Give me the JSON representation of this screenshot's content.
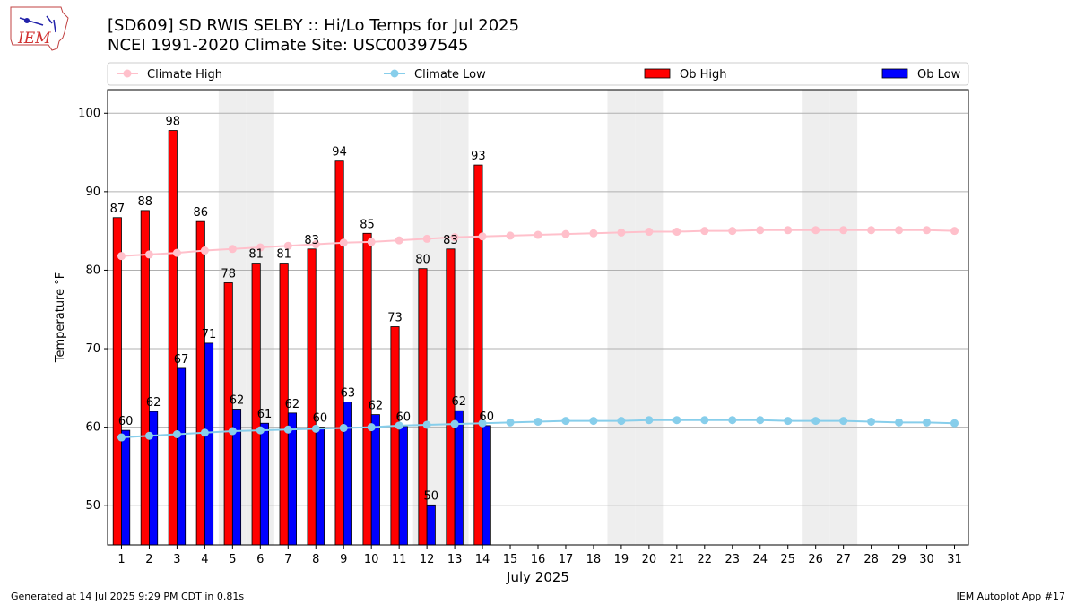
{
  "header": {
    "title_line1": "[SD609] SD RWIS SELBY :: Hi/Lo Temps for Jul 2025",
    "title_line2": "NCEI 1991-2020 Climate Site: USC00397545"
  },
  "logo": {
    "text": "IEM"
  },
  "footer": {
    "left": "Generated at 14 Jul 2025 9:29 PM CDT in 0.81s",
    "right": "IEM Autoplot App #17"
  },
  "colors": {
    "climate_high": "#ffc0cb",
    "climate_low": "#87ceeb",
    "ob_high": "#ff0000",
    "ob_low": "#0000ff",
    "weekend_shade": "#eeeeee",
    "grid": "#b0b0b0"
  },
  "chart_data": {
    "type": "bar",
    "xlabel": "July 2025",
    "ylabel": "Temperature °F",
    "ylim": [
      45,
      103
    ],
    "yticks": [
      50,
      60,
      70,
      80,
      90,
      100
    ],
    "grid": "horizontal",
    "legend_placement": "top",
    "categories": [
      "1",
      "2",
      "3",
      "4",
      "5",
      "6",
      "7",
      "8",
      "9",
      "10",
      "11",
      "12",
      "13",
      "14",
      "15",
      "16",
      "17",
      "18",
      "19",
      "20",
      "21",
      "22",
      "23",
      "24",
      "25",
      "26",
      "27",
      "28",
      "29",
      "30",
      "31"
    ],
    "weekend_days": [
      5,
      6,
      12,
      13,
      19,
      20,
      26,
      27
    ],
    "series": [
      {
        "name": "Climate High",
        "kind": "line",
        "values": [
          81.8,
          82.0,
          82.2,
          82.5,
          82.7,
          82.9,
          83.1,
          83.3,
          83.5,
          83.6,
          83.8,
          84.0,
          84.2,
          84.3,
          84.4,
          84.5,
          84.6,
          84.7,
          84.8,
          84.9,
          84.9,
          85.0,
          85.0,
          85.1,
          85.1,
          85.1,
          85.1,
          85.1,
          85.1,
          85.1,
          85.0
        ]
      },
      {
        "name": "Climate Low",
        "kind": "line",
        "values": [
          58.7,
          58.9,
          59.1,
          59.3,
          59.5,
          59.6,
          59.7,
          59.8,
          59.9,
          60.0,
          60.2,
          60.3,
          60.4,
          60.5,
          60.6,
          60.7,
          60.8,
          60.8,
          60.8,
          60.9,
          60.9,
          60.9,
          60.9,
          60.9,
          60.8,
          60.8,
          60.8,
          60.7,
          60.6,
          60.6,
          60.5
        ]
      },
      {
        "name": "Ob High",
        "kind": "bar",
        "values": [
          87,
          88,
          98,
          86,
          78,
          81,
          81,
          83,
          94,
          85,
          73,
          80,
          83,
          93,
          null,
          null,
          null,
          null,
          null,
          null,
          null,
          null,
          null,
          null,
          null,
          null,
          null,
          null,
          null,
          null,
          null
        ],
        "plot_values": [
          86.7,
          87.6,
          97.8,
          86.2,
          78.4,
          80.9,
          80.9,
          82.7,
          93.9,
          84.7,
          72.8,
          80.2,
          82.7,
          93.4
        ]
      },
      {
        "name": "Ob Low",
        "kind": "bar",
        "values": [
          60,
          62,
          67,
          71,
          62,
          61,
          62,
          60,
          63,
          62,
          60,
          50,
          62,
          60,
          null,
          null,
          null,
          null,
          null,
          null,
          null,
          null,
          null,
          null,
          null,
          null,
          null,
          null,
          null,
          null,
          null
        ],
        "plot_values": [
          59.6,
          62.0,
          67.5,
          70.7,
          62.3,
          60.5,
          61.8,
          60.0,
          63.2,
          61.6,
          60.1,
          50.1,
          62.1,
          60.2
        ]
      }
    ]
  }
}
